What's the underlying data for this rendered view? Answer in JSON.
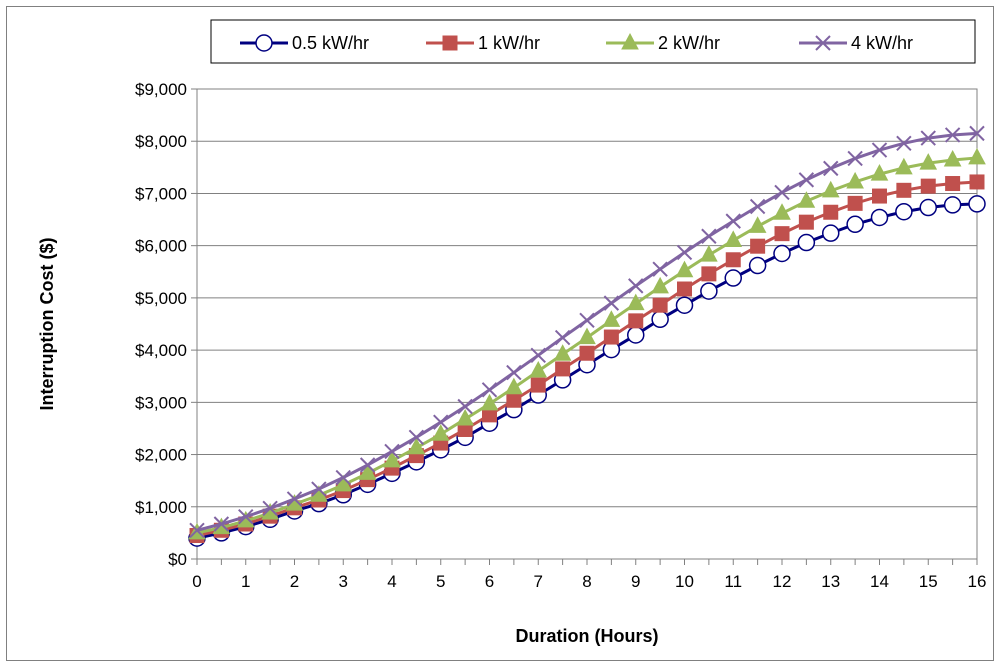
{
  "header": {
    "partial_title": ""
  },
  "chart_data": {
    "type": "line",
    "title": "",
    "xlabel": "Duration (Hours)",
    "ylabel": "Interruption Cost ($)",
    "xlim": [
      0,
      16
    ],
    "ylim": [
      0,
      9000
    ],
    "x_ticks": [
      "0",
      "1",
      "2",
      "3",
      "4",
      "5",
      "6",
      "7",
      "8",
      "9",
      "10",
      "11",
      "12",
      "13",
      "14",
      "15",
      "16"
    ],
    "y_ticks": [
      "$0",
      "$1,000",
      "$2,000",
      "$3,000",
      "$4,000",
      "$5,000",
      "$6,000",
      "$7,000",
      "$8,000",
      "$9,000"
    ],
    "grid": "horizontal",
    "legend_position": "top",
    "x": [
      0,
      0.5,
      1,
      1.5,
      2,
      2.5,
      3,
      3.5,
      4,
      4.5,
      5,
      5.5,
      6,
      6.5,
      7,
      7.5,
      8,
      8.5,
      9,
      9.5,
      10,
      10.5,
      11,
      11.5,
      12,
      12.5,
      13,
      13.5,
      14,
      14.5,
      15,
      15.5,
      16
    ],
    "series": [
      {
        "name": "0.5 kW/hr",
        "color": "#000080",
        "marker": "open-circle",
        "values": [
          400,
          500,
          620,
          760,
          920,
          1060,
          1230,
          1430,
          1640,
          1860,
          2090,
          2330,
          2600,
          2860,
          3140,
          3430,
          3720,
          4010,
          4290,
          4590,
          4860,
          5130,
          5380,
          5620,
          5850,
          6060,
          6240,
          6410,
          6540,
          6650,
          6730,
          6780,
          6800
        ]
      },
      {
        "name": "1 kW/hr",
        "color": "#C0504D",
        "marker": "square",
        "values": [
          450,
          550,
          670,
          820,
          980,
          1130,
          1310,
          1520,
          1740,
          1980,
          2220,
          2480,
          2760,
          3040,
          3330,
          3640,
          3940,
          4250,
          4560,
          4860,
          5170,
          5460,
          5730,
          5990,
          6230,
          6450,
          6640,
          6810,
          6950,
          7060,
          7140,
          7190,
          7220
        ]
      },
      {
        "name": "2 kW/hr",
        "color": "#9BBB59",
        "marker": "triangle",
        "values": [
          500,
          600,
          730,
          880,
          1050,
          1220,
          1420,
          1640,
          1880,
          2130,
          2390,
          2680,
          2970,
          3280,
          3600,
          3920,
          4240,
          4570,
          4890,
          5210,
          5520,
          5820,
          6100,
          6370,
          6620,
          6850,
          7050,
          7220,
          7370,
          7490,
          7580,
          7640,
          7680
        ]
      },
      {
        "name": "4 kW/hr",
        "color": "#8064A2",
        "marker": "x",
        "values": [
          550,
          670,
          810,
          970,
          1150,
          1340,
          1560,
          1800,
          2060,
          2330,
          2620,
          2920,
          3240,
          3570,
          3900,
          4240,
          4570,
          4900,
          5230,
          5550,
          5870,
          6180,
          6470,
          6750,
          7020,
          7260,
          7480,
          7670,
          7830,
          7960,
          8060,
          8120,
          8150
        ]
      }
    ]
  }
}
